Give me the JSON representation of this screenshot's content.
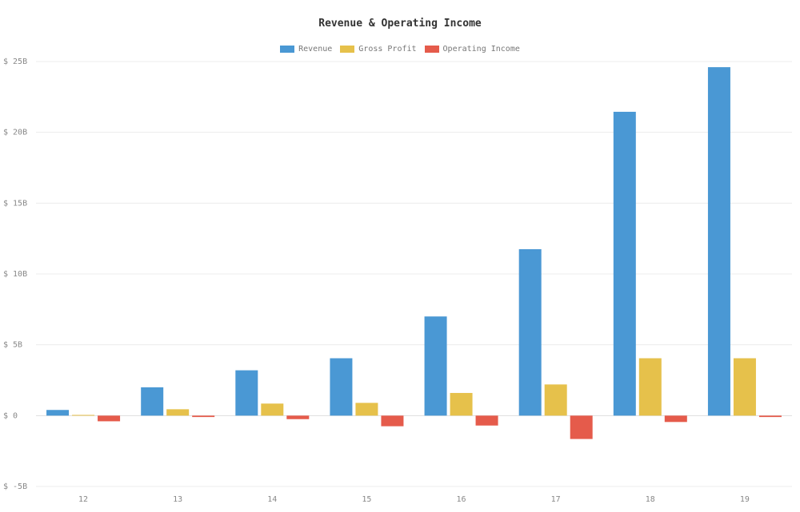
{
  "chart_data": {
    "type": "bar",
    "title": "Revenue & Operating Income",
    "categories": [
      "12",
      "13",
      "14",
      "15",
      "16",
      "17",
      "18",
      "19"
    ],
    "series": [
      {
        "name": "Revenue",
        "color": "#4a98d4",
        "values": [
          0.4,
          2.0,
          3.2,
          4.05,
          7.0,
          11.75,
          21.45,
          24.6
        ]
      },
      {
        "name": "Gross Profit",
        "color": "#e6c14b",
        "values": [
          0.05,
          0.45,
          0.85,
          0.9,
          1.6,
          2.2,
          4.05,
          4.05
        ]
      },
      {
        "name": "Operating Income",
        "color": "#e55b4b",
        "values": [
          -0.4,
          -0.1,
          -0.25,
          -0.75,
          -0.7,
          -1.65,
          -0.45,
          -0.1
        ]
      }
    ],
    "ylim": [
      -5,
      25
    ],
    "yticks": [
      -5,
      0,
      5,
      10,
      15,
      20,
      25
    ],
    "ytick_labels": [
      "$ -5B",
      "$ 0",
      "$ 5B",
      "$ 10B",
      "$ 15B",
      "$ 20B",
      "$ 25B"
    ],
    "xlabel": "",
    "ylabel": "",
    "grid": true,
    "legend_position": "top-center"
  }
}
